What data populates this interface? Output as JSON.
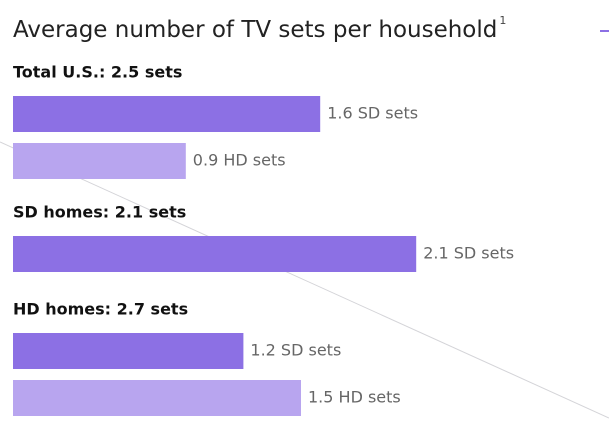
{
  "chart_data": {
    "type": "bar",
    "title": "Average number of TV sets per household",
    "title_note": "1",
    "groups": [
      {
        "title": "Total U.S.: 2.5 sets",
        "values": [
          1.6,
          0.9
        ],
        "value_labels": [
          "1.6 SD sets",
          "0.9 HD sets"
        ],
        "colors": [
          "#8c70e4",
          "#b8a5ef"
        ]
      },
      {
        "title": "SD homes: 2.1 sets",
        "values": [
          2.1
        ],
        "value_labels": [
          "2.1 SD sets"
        ],
        "colors": [
          "#8c70e4"
        ]
      },
      {
        "title": "HD homes: 2.7 sets",
        "values": [
          1.2,
          1.5
        ],
        "value_labels": [
          "1.2 SD sets",
          "1.5 HD sets"
        ],
        "colors": [
          "#8c70e4",
          "#b8a5ef"
        ]
      }
    ]
  }
}
